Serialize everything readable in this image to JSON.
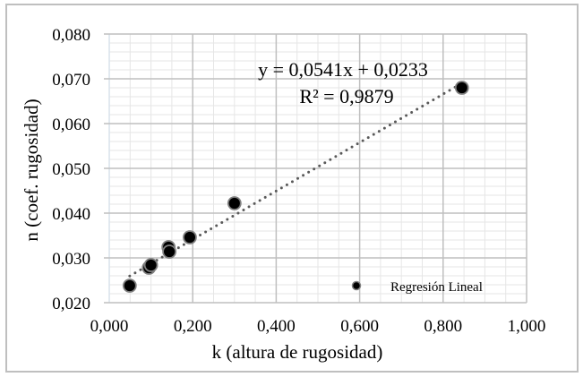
{
  "chart_data": {
    "type": "scatter",
    "title": "",
    "xlabel": "k (altura de rugosidad)",
    "ylabel": "n (coef. rugosidad)",
    "xlim": [
      0.0,
      1.0
    ],
    "ylim": [
      0.02,
      0.08
    ],
    "x_ticks": [
      "0,000",
      "0,200",
      "0,400",
      "0,600",
      "0,800",
      "1,000"
    ],
    "y_ticks": [
      "0,020",
      "0,030",
      "0,040",
      "0,050",
      "0,060",
      "0,070",
      "0,080"
    ],
    "grid": true,
    "legend_position": "lower right",
    "series": [
      {
        "name": "Regresión Lineal",
        "marker": "circle",
        "color": "#000000",
        "points": [
          {
            "x": 0.049,
            "y": 0.0238
          },
          {
            "x": 0.095,
            "y": 0.0278
          },
          {
            "x": 0.1,
            "y": 0.0284
          },
          {
            "x": 0.142,
            "y": 0.0324
          },
          {
            "x": 0.144,
            "y": 0.0314
          },
          {
            "x": 0.193,
            "y": 0.0346
          },
          {
            "x": 0.3,
            "y": 0.0422
          },
          {
            "x": 0.845,
            "y": 0.068
          }
        ]
      }
    ],
    "trendline": {
      "type": "linear",
      "style": "dotted",
      "color": "#595959",
      "slope": 0.0541,
      "intercept": 0.0233,
      "x_range": [
        0.049,
        0.845
      ],
      "equation_label": "y = 0,0541x + 0,0233",
      "r2_label": "R² = 0,9879"
    }
  },
  "legend": {
    "label": "Regresión Lineal"
  },
  "colors": {
    "border": "#bfbfbf",
    "major_grid": "#bfbfbf",
    "minor_grid": "#e6e6e6",
    "marker": "#000000",
    "marker_outline": "#7f7f7f",
    "trendline": "#595959"
  }
}
